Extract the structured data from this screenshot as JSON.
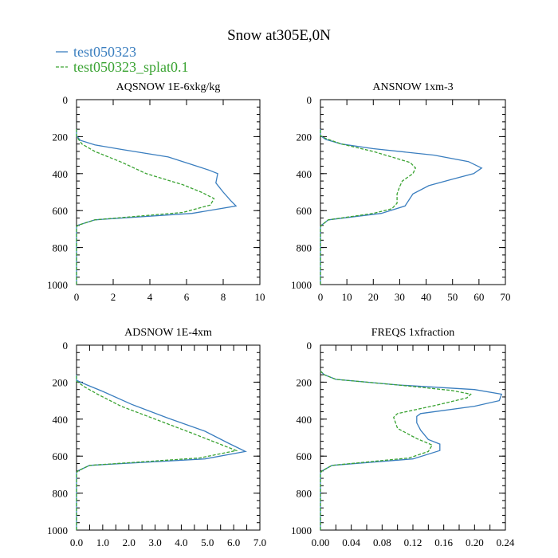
{
  "figure_title": "Snow at305E,0N",
  "legend": [
    {
      "label": "test050323",
      "color": "#3a7ebf",
      "dash": "solid"
    },
    {
      "label": "test050323_splat0.1",
      "color": "#3aa332",
      "dash": "dashed"
    }
  ],
  "chart_data": [
    {
      "type": "line",
      "title": "AQSNOW  1E-6xkg/kg",
      "xlim": [
        0,
        10
      ],
      "ylim": [
        0,
        1000
      ],
      "y_inverted": true,
      "xticks": [
        0,
        2,
        4,
        6,
        8,
        10
      ],
      "xtick_labels": [
        "0",
        "2",
        "4",
        "6",
        "8",
        "10"
      ],
      "yticks": [
        0,
        200,
        400,
        600,
        800,
        1000
      ],
      "ytick_labels": [
        "0",
        "200",
        "400",
        "600",
        "800",
        "1000"
      ],
      "series": [
        {
          "name": "test050323",
          "color": "#3a7ebf",
          "dash": "solid",
          "points": [
            [
              0,
              1000
            ],
            [
              0,
              700
            ],
            [
              0,
              690
            ],
            [
              0.05,
              680
            ],
            [
              1.0,
              650
            ],
            [
              6.3,
              615
            ],
            [
              8.7,
              575
            ],
            [
              8.4,
              545
            ],
            [
              8.0,
              500
            ],
            [
              7.6,
              450
            ],
            [
              7.7,
              400
            ],
            [
              7.2,
              380
            ],
            [
              5.0,
              310
            ],
            [
              2.5,
              270
            ],
            [
              1.0,
              245
            ],
            [
              0.2,
              220
            ],
            [
              0,
              195
            ],
            [
              0,
              160
            ]
          ]
        },
        {
          "name": "test050323_splat0.1",
          "color": "#3aa332",
          "dash": "dashed",
          "points": [
            [
              0,
              1000
            ],
            [
              0,
              700
            ],
            [
              0,
              690
            ],
            [
              0.05,
              680
            ],
            [
              1.0,
              650
            ],
            [
              5.8,
              610
            ],
            [
              7.3,
              570
            ],
            [
              7.5,
              535
            ],
            [
              6.8,
              500
            ],
            [
              5.8,
              460
            ],
            [
              4.8,
              430
            ],
            [
              3.8,
              400
            ],
            [
              2.5,
              340
            ],
            [
              1.0,
              280
            ],
            [
              0.3,
              240
            ],
            [
              0,
              200
            ],
            [
              0,
              160
            ]
          ]
        }
      ]
    },
    {
      "type": "line",
      "title": "ANSNOW  1xm-3",
      "xlim": [
        0,
        70
      ],
      "ylim": [
        0,
        1000
      ],
      "y_inverted": true,
      "xticks": [
        0,
        10,
        20,
        30,
        40,
        50,
        60,
        70
      ],
      "xtick_labels": [
        "0",
        "10",
        "20",
        "30",
        "40",
        "50",
        "60",
        "70"
      ],
      "yticks": [
        0,
        200,
        400,
        600,
        800,
        1000
      ],
      "ytick_labels": [
        "0",
        "200",
        "400",
        "600",
        "800",
        "1000"
      ],
      "series": [
        {
          "name": "test050323",
          "color": "#3a7ebf",
          "dash": "solid",
          "points": [
            [
              0,
              1000
            ],
            [
              0,
              700
            ],
            [
              0,
              690
            ],
            [
              0.3,
              680
            ],
            [
              3,
              650
            ],
            [
              23,
              615
            ],
            [
              32,
              575
            ],
            [
              35,
              510
            ],
            [
              41,
              465
            ],
            [
              50,
              430
            ],
            [
              58,
              400
            ],
            [
              61,
              370
            ],
            [
              56,
              335
            ],
            [
              43,
              300
            ],
            [
              20,
              265
            ],
            [
              8,
              240
            ],
            [
              2,
              215
            ],
            [
              0,
              195
            ],
            [
              0,
              160
            ]
          ]
        },
        {
          "name": "test050323_splat0.1",
          "color": "#3aa332",
          "dash": "dashed",
          "points": [
            [
              0,
              1000
            ],
            [
              0,
              700
            ],
            [
              0,
              690
            ],
            [
              0.3,
              680
            ],
            [
              3,
              650
            ],
            [
              20,
              615
            ],
            [
              27,
              590
            ],
            [
              29,
              560
            ],
            [
              29,
              510
            ],
            [
              30,
              470
            ],
            [
              31,
              440
            ],
            [
              35,
              400
            ],
            [
              36,
              370
            ],
            [
              34,
              340
            ],
            [
              20,
              280
            ],
            [
              8,
              240
            ],
            [
              2,
              210
            ],
            [
              0,
              195
            ],
            [
              0,
              160
            ]
          ]
        }
      ]
    },
    {
      "type": "line",
      "title": "ADSNOW  1E-4xm",
      "xlim": [
        0,
        7
      ],
      "ylim": [
        0,
        1000
      ],
      "y_inverted": true,
      "xticks": [
        0,
        0.5,
        1,
        1.5,
        2,
        2.5,
        3,
        3.5,
        4,
        4.5,
        5,
        5.5,
        6,
        6.5,
        7
      ],
      "xtick_labels": [
        "0.0",
        "1.0",
        "2.0",
        "3.0",
        "4.0",
        "5.0",
        "6.0",
        "7.0"
      ],
      "xtick_label_values": [
        0,
        1,
        2,
        3,
        4,
        5,
        6,
        7
      ],
      "yticks": [
        0,
        200,
        400,
        600,
        800,
        1000
      ],
      "ytick_labels": [
        "0",
        "200",
        "400",
        "600",
        "800",
        "1000"
      ],
      "series": [
        {
          "name": "test050323",
          "color": "#3a7ebf",
          "dash": "solid",
          "points": [
            [
              0,
              1000
            ],
            [
              0,
              700
            ],
            [
              0,
              690
            ],
            [
              0.05,
              680
            ],
            [
              0.5,
              650
            ],
            [
              4.9,
              615
            ],
            [
              6.45,
              575
            ],
            [
              5.8,
              530
            ],
            [
              4.9,
              465
            ],
            [
              3.5,
              395
            ],
            [
              2.1,
              320
            ],
            [
              1.0,
              250
            ],
            [
              0.4,
              215
            ],
            [
              0,
              190
            ],
            [
              0,
              160
            ]
          ]
        },
        {
          "name": "test050323_splat0.1",
          "color": "#3aa332",
          "dash": "dashed",
          "points": [
            [
              0,
              1000
            ],
            [
              0,
              700
            ],
            [
              0,
              690
            ],
            [
              0.05,
              680
            ],
            [
              0.5,
              650
            ],
            [
              4.7,
              610
            ],
            [
              6.1,
              570
            ],
            [
              5.2,
              520
            ],
            [
              4.3,
              470
            ],
            [
              3.0,
              400
            ],
            [
              1.7,
              330
            ],
            [
              0.8,
              265
            ],
            [
              0.3,
              225
            ],
            [
              0,
              195
            ],
            [
              0,
              160
            ]
          ]
        }
      ]
    },
    {
      "type": "line",
      "title": "FREQS  1xfraction",
      "xlim": [
        0,
        0.24
      ],
      "ylim": [
        0,
        1000
      ],
      "y_inverted": true,
      "xticks": [
        0,
        0.02,
        0.04,
        0.06,
        0.08,
        0.1,
        0.12,
        0.14,
        0.16,
        0.18,
        0.2,
        0.22,
        0.24
      ],
      "xtick_labels": [
        "0.00",
        "0.04",
        "0.08",
        "0.12",
        "0.16",
        "0.20",
        "0.24"
      ],
      "xtick_label_values": [
        0,
        0.04,
        0.08,
        0.12,
        0.16,
        0.2,
        0.24
      ],
      "yticks": [
        0,
        200,
        400,
        600,
        800,
        1000
      ],
      "ytick_labels": [
        "0",
        "200",
        "400",
        "600",
        "800",
        "1000"
      ],
      "series": [
        {
          "name": "test050323",
          "color": "#3a7ebf",
          "dash": "solid",
          "points": [
            [
              0,
              1000
            ],
            [
              0,
              700
            ],
            [
              0,
              690
            ],
            [
              0.002,
              680
            ],
            [
              0.015,
              650
            ],
            [
              0.12,
              615
            ],
            [
              0.155,
              570
            ],
            [
              0.155,
              535
            ],
            [
              0.14,
              510
            ],
            [
              0.13,
              460
            ],
            [
              0.125,
              420
            ],
            [
              0.125,
              385
            ],
            [
              0.13,
              370
            ],
            [
              0.2,
              330
            ],
            [
              0.232,
              300
            ],
            [
              0.235,
              265
            ],
            [
              0.2,
              240
            ],
            [
              0.1,
              215
            ],
            [
              0.02,
              185
            ],
            [
              0.005,
              160
            ],
            [
              0,
              140
            ]
          ]
        },
        {
          "name": "test050323_splat0.1",
          "color": "#3aa332",
          "dash": "dashed",
          "points": [
            [
              0,
              1000
            ],
            [
              0,
              700
            ],
            [
              0,
              690
            ],
            [
              0.002,
              680
            ],
            [
              0.015,
              650
            ],
            [
              0.115,
              610
            ],
            [
              0.14,
              575
            ],
            [
              0.145,
              540
            ],
            [
              0.125,
              505
            ],
            [
              0.1,
              450
            ],
            [
              0.095,
              390
            ],
            [
              0.1,
              370
            ],
            [
              0.15,
              325
            ],
            [
              0.19,
              285
            ],
            [
              0.195,
              265
            ],
            [
              0.17,
              245
            ],
            [
              0.1,
              215
            ],
            [
              0.02,
              185
            ],
            [
              0.005,
              160
            ],
            [
              0,
              140
            ]
          ]
        }
      ]
    }
  ]
}
